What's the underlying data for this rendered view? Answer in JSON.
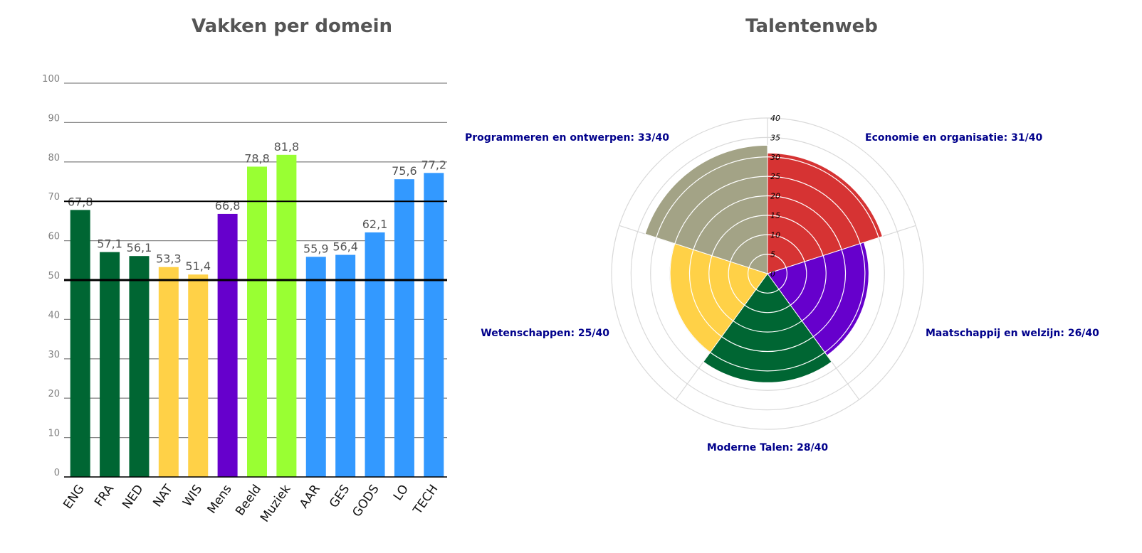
{
  "chart_data": [
    {
      "type": "bar",
      "title": "Vakken per domein",
      "categories": [
        "ENG",
        "FRA",
        "NED",
        "NAT",
        "WIS",
        "Mens",
        "Beeld",
        "Muziek",
        "AAR",
        "GES",
        "GODS",
        "LO",
        "TECH"
      ],
      "values": [
        67.8,
        57.1,
        56.1,
        53.3,
        51.4,
        66.8,
        78.8,
        81.8,
        55.9,
        56.4,
        62.1,
        75.6,
        77.2
      ],
      "value_labels": [
        "67,8",
        "57,1",
        "56,1",
        "53,3",
        "51,4",
        "66,8",
        "78,8",
        "81,8",
        "55,9",
        "56,4",
        "62,1",
        "75,6",
        "77,2"
      ],
      "colors": [
        "#006633",
        "#006633",
        "#006633",
        "#ffd147",
        "#ffd147",
        "#6600cc",
        "#99ff33",
        "#99ff33",
        "#3399ff",
        "#3399ff",
        "#3399ff",
        "#3399ff",
        "#3399ff"
      ],
      "ylim": [
        0,
        100
      ],
      "yticks": [
        "0",
        "10",
        "20",
        "30",
        "40",
        "50",
        "60",
        "70",
        "80",
        "90",
        "100"
      ],
      "reference_lines": [
        50,
        70
      ],
      "grid": true
    },
    {
      "type": "polar-area",
      "title": "Talentenweb",
      "rlim": [
        0,
        40
      ],
      "rticks": [
        "0",
        "5",
        "10",
        "15",
        "20",
        "25",
        "30",
        "35",
        "40"
      ],
      "segments": [
        {
          "label": "Economie en organisatie: 31/40",
          "value": 31,
          "color": "#d63333"
        },
        {
          "label": "Maatschappij en welzijn: 26/40",
          "value": 26,
          "color": "#6600cc"
        },
        {
          "label": "Moderne Talen: 28/40",
          "value": 28,
          "color": "#006633"
        },
        {
          "label": "Wetenschappen: 25/40",
          "value": 25,
          "color": "#ffd147"
        },
        {
          "label": "Programmeren en ontwerpen: 33/40",
          "value": 33,
          "color": "#a3a386"
        }
      ]
    }
  ]
}
